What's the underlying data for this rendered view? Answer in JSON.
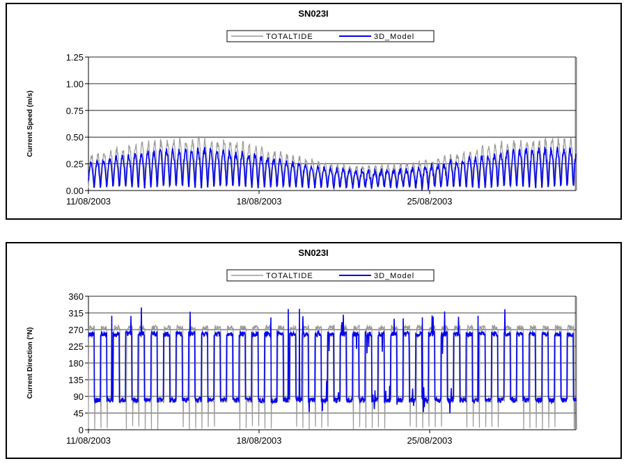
{
  "chart_data": [
    {
      "type": "line",
      "title": "SN023I",
      "ylabel": "Current Speed (m/s)",
      "xlabel": "",
      "ylim": [
        0,
        1.25
      ],
      "yticks": [
        "0.00",
        "0.25",
        "0.50",
        "0.75",
        "1.00",
        "1.25"
      ],
      "xlim": [
        "11/08/2003",
        "31/08/2003"
      ],
      "xticks": [
        "11/08/2003",
        "18/08/2003",
        "25/08/2003"
      ],
      "grid": "horizontal",
      "legend": "top-center",
      "series": [
        {
          "name": "TOTALTIDE",
          "color": "#999999",
          "kind": "speed",
          "amp": 0.45,
          "floor": 0.02
        },
        {
          "name": "3D_Model",
          "color": "#0000ee",
          "kind": "speed",
          "amp": 0.36,
          "floor": 0.02
        }
      ]
    },
    {
      "type": "line",
      "title": "SN023I",
      "ylabel": "Current Direction (°N)",
      "xlabel": "",
      "ylim": [
        0,
        360
      ],
      "yticks": [
        "0",
        "45",
        "90",
        "135",
        "180",
        "225",
        "270",
        "315",
        "360"
      ],
      "xlim": [
        "11/08/2003",
        "31/08/2003"
      ],
      "xticks": [
        "11/08/2003",
        "18/08/2003",
        "25/08/2003"
      ],
      "grid": "horizontal",
      "legend": "top-center",
      "series": [
        {
          "name": "TOTALTIDE",
          "color": "#999999",
          "kind": "direction",
          "high": 275,
          "low": 80
        },
        {
          "name": "3D_Model",
          "color": "#0000ee",
          "kind": "direction",
          "high": 258,
          "low": 80
        }
      ]
    }
  ]
}
